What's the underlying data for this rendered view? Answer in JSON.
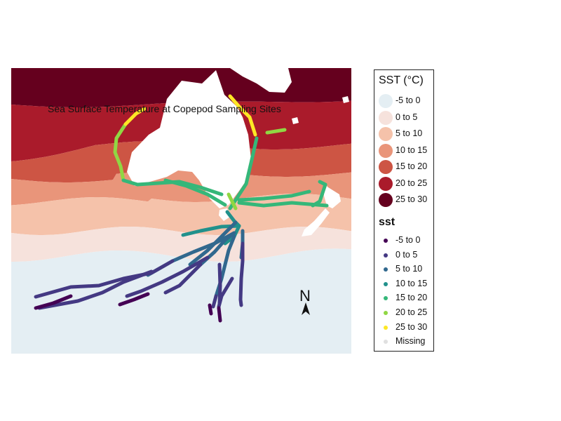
{
  "map": {
    "title": "Sea Surface Temperature at Copepod Sampling Sites",
    "north_label": "N",
    "land_color": "#ffffff"
  },
  "sst_bands": {
    "title": "SST (°C)",
    "items": [
      {
        "label": "-5 to 0",
        "color": "#e4eef3"
      },
      {
        "label": "0 to 5",
        "color": "#f6e2dc"
      },
      {
        "label": "5 to 10",
        "color": "#f5c2aa"
      },
      {
        "label": "10 to 15",
        "color": "#e9957a"
      },
      {
        "label": "15 to 20",
        "color": "#cd5544"
      },
      {
        "label": "20 to 25",
        "color": "#aa1b2b"
      },
      {
        "label": "25 to 30",
        "color": "#65001e"
      }
    ]
  },
  "sst_points": {
    "title": "sst",
    "items": [
      {
        "label": "-5 to 0",
        "color": "#440154"
      },
      {
        "label": "0 to 5",
        "color": "#443983"
      },
      {
        "label": "5 to 10",
        "color": "#31688e"
      },
      {
        "label": "10 to 15",
        "color": "#21918c"
      },
      {
        "label": "15 to 20",
        "color": "#35b779"
      },
      {
        "label": "20 to 25",
        "color": "#90d743"
      },
      {
        "label": "25 to 30",
        "color": "#fde725"
      },
      {
        "label": "Missing",
        "color": "#e0e0e0"
      }
    ]
  }
}
